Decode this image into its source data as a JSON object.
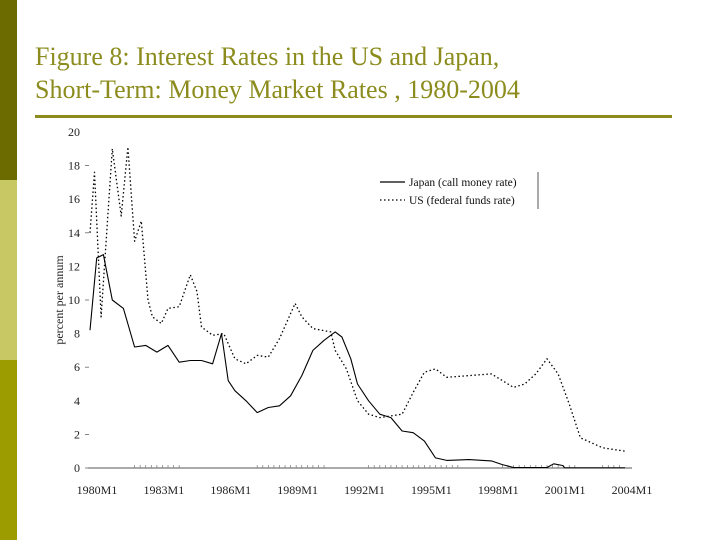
{
  "slide": {
    "title_line1": "Figure 8: Interest Rates in the US and Japan,",
    "title_line2": "Short-Term: Money Market Rates , 1980-2004",
    "colors": {
      "title": "#8c8c1e",
      "divider": "#8c8c1e",
      "sidebar_top": "#6b6b00",
      "sidebar_mid": "#c8c864",
      "sidebar_bottom": "#9c9c00"
    }
  },
  "chart_data": {
    "type": "line",
    "title": "Interest Rates in the US and Japan, Short-Term: Money Market Rates, 1980-2004",
    "xlabel": "",
    "ylabel": "percent per annum",
    "ylim": [
      0,
      20
    ],
    "xlim": [
      1980,
      2004
    ],
    "yticks": [
      0,
      2,
      4,
      6,
      8,
      10,
      12,
      14,
      16,
      18,
      20
    ],
    "xtick_labels": [
      "1980M1",
      "1983M1",
      "1986M1",
      "1989M1",
      "1992M1",
      "1995M1",
      "1998M1",
      "2001M1",
      "2004M1"
    ],
    "xtick_values": [
      1980,
      1983,
      1986,
      1989,
      1992,
      1995,
      1998,
      2001,
      2004
    ],
    "grid": false,
    "legend_position": "upper right",
    "series": [
      {
        "name": "Japan (call money rate)",
        "style": "solid",
        "x": [
          1980.0,
          1980.3,
          1980.6,
          1981.0,
          1981.5,
          1982.0,
          1982.5,
          1983.0,
          1983.5,
          1984.0,
          1984.5,
          1985.0,
          1985.5,
          1985.9,
          1986.2,
          1986.5,
          1987.0,
          1987.5,
          1988.0,
          1988.5,
          1989.0,
          1989.5,
          1990.0,
          1990.5,
          1991.0,
          1991.3,
          1991.7,
          1992.0,
          1992.5,
          1993.0,
          1993.5,
          1994.0,
          1994.5,
          1995.0,
          1995.5,
          1996.0,
          1997.0,
          1998.0,
          1998.5,
          1999.0,
          2000.5,
          2000.8,
          2001.2,
          2001.3,
          2004.0
        ],
        "values": [
          8.2,
          12.5,
          12.7,
          10.0,
          9.5,
          7.2,
          7.3,
          6.9,
          7.3,
          6.3,
          6.4,
          6.4,
          6.2,
          8.0,
          5.2,
          4.6,
          4.0,
          3.3,
          3.6,
          3.7,
          4.3,
          5.5,
          7.0,
          7.6,
          8.1,
          7.8,
          6.5,
          5.0,
          4.0,
          3.2,
          3.0,
          2.2,
          2.1,
          1.6,
          0.6,
          0.45,
          0.5,
          0.42,
          0.2,
          0.03,
          0.03,
          0.25,
          0.15,
          0.01,
          0.01
        ]
      },
      {
        "name": "US (federal funds rate)",
        "style": "dotted",
        "x": [
          1980.0,
          1980.2,
          1980.5,
          1980.8,
          1981.0,
          1981.4,
          1981.7,
          1982.0,
          1982.3,
          1982.6,
          1982.8,
          1983.2,
          1983.5,
          1984.0,
          1984.5,
          1984.8,
          1985.0,
          1985.5,
          1986.0,
          1986.5,
          1987.0,
          1987.5,
          1988.0,
          1988.5,
          1989.2,
          1989.5,
          1990.0,
          1990.8,
          1991.0,
          1991.5,
          1992.0,
          1992.5,
          1993.0,
          1994.0,
          1994.5,
          1995.0,
          1995.5,
          1996.0,
          1997.0,
          1998.0,
          1998.5,
          1999.0,
          1999.5,
          2000.0,
          2000.5,
          2001.0,
          2001.5,
          2002.0,
          2003.0,
          2004.0
        ],
        "values": [
          14.0,
          17.6,
          9.0,
          15.0,
          19.0,
          15.0,
          19.1,
          13.5,
          14.7,
          10.0,
          9.0,
          8.6,
          9.5,
          9.6,
          11.5,
          10.5,
          8.4,
          7.9,
          8.0,
          6.5,
          6.2,
          6.7,
          6.6,
          7.7,
          9.8,
          9.0,
          8.3,
          8.1,
          7.0,
          5.9,
          4.0,
          3.2,
          3.0,
          3.2,
          4.5,
          5.7,
          5.9,
          5.4,
          5.5,
          5.6,
          5.2,
          4.8,
          5.0,
          5.6,
          6.5,
          5.6,
          3.8,
          1.8,
          1.2,
          1.0
        ]
      }
    ]
  }
}
